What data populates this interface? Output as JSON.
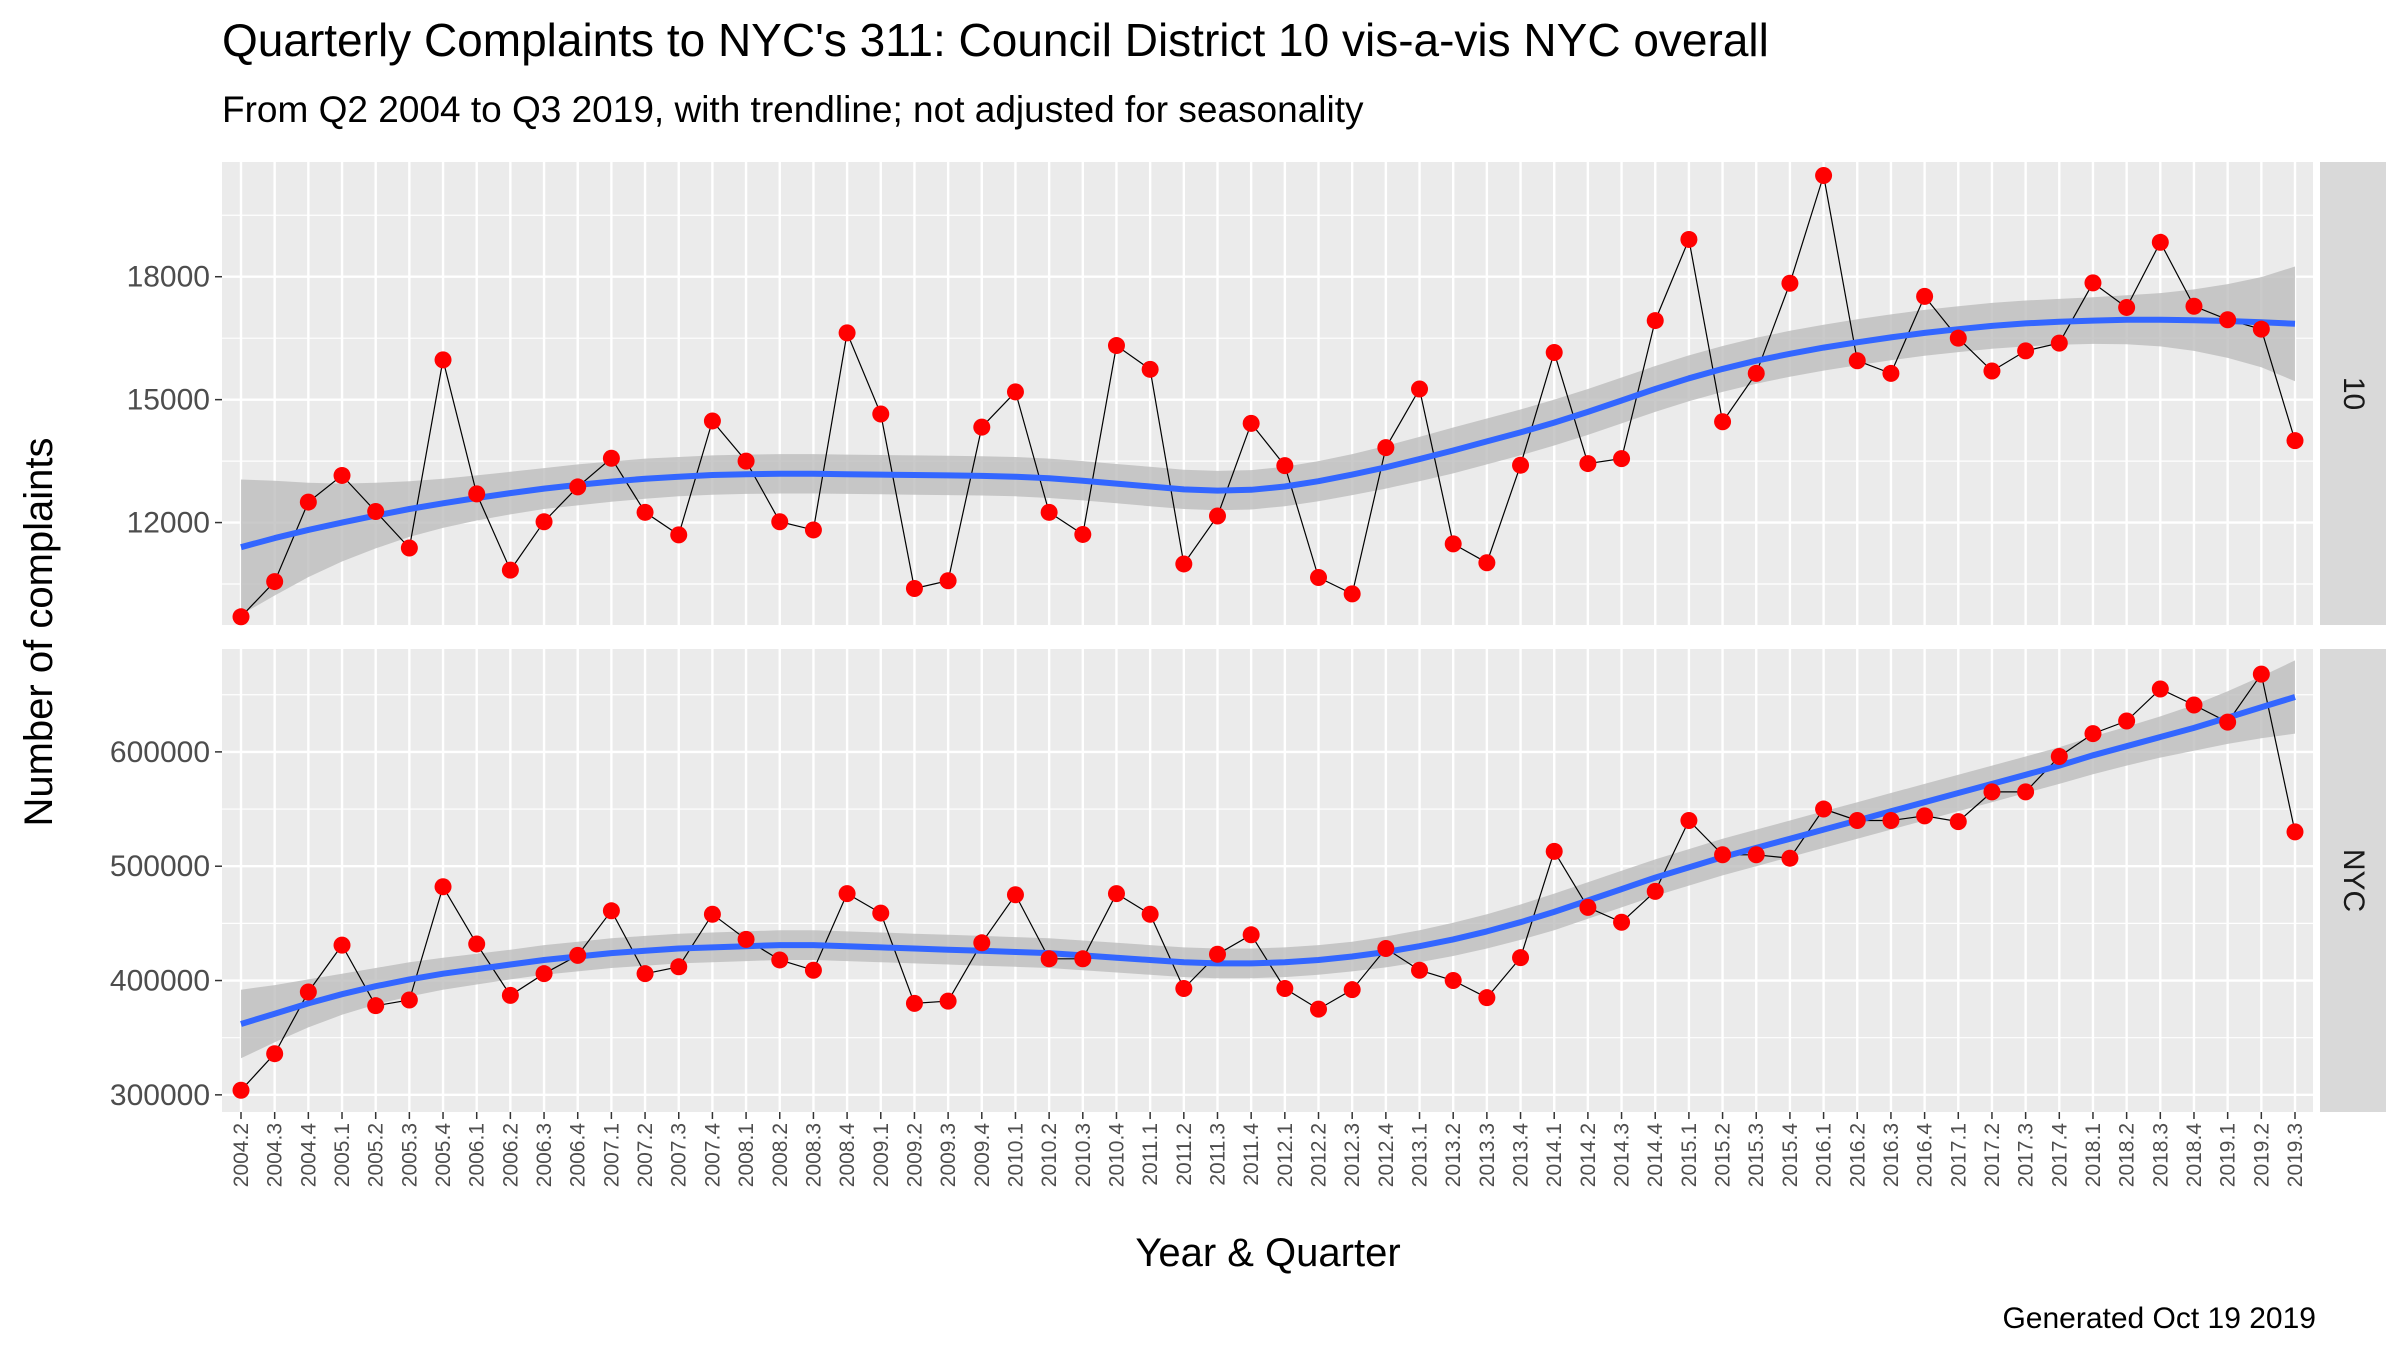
{
  "chart_data": {
    "type": "line",
    "title": "Quarterly Complaints to NYC's 311: Council District 10 vis-a-vis NYC overall",
    "subtitle": "From Q2 2004 to Q3 2019, with trendline; not adjusted for seasonality",
    "xlabel": "Year & Quarter",
    "ylabel": "Number of complaints",
    "caption": "Generated Oct 19 2019",
    "categories": [
      "2004.2",
      "2004.3",
      "2004.4",
      "2005.1",
      "2005.2",
      "2005.3",
      "2005.4",
      "2006.1",
      "2006.2",
      "2006.3",
      "2006.4",
      "2007.1",
      "2007.2",
      "2007.3",
      "2007.4",
      "2008.1",
      "2008.2",
      "2008.3",
      "2008.4",
      "2009.1",
      "2009.2",
      "2009.3",
      "2009.4",
      "2010.1",
      "2010.2",
      "2010.3",
      "2010.4",
      "2011.1",
      "2011.2",
      "2011.3",
      "2011.4",
      "2012.1",
      "2012.2",
      "2012.3",
      "2012.4",
      "2013.1",
      "2013.2",
      "2013.3",
      "2013.4",
      "2014.1",
      "2014.2",
      "2014.3",
      "2014.4",
      "2015.1",
      "2015.2",
      "2015.3",
      "2015.4",
      "2016.1",
      "2016.2",
      "2016.3",
      "2016.4",
      "2017.1",
      "2017.2",
      "2017.3",
      "2017.4",
      "2018.1",
      "2018.2",
      "2018.3",
      "2018.4",
      "2019.1",
      "2019.2",
      "2019.3"
    ],
    "grid": true,
    "trendline": "smooth with confidence band",
    "colors": {
      "panel_bg": "#ebebeb",
      "grid": "#ffffff",
      "strip_bg": "#d9d9d9",
      "points": "#ff0000",
      "line": "#000000",
      "trend": "#3366ff",
      "band": "#bdbdbd"
    },
    "panels": [
      {
        "strip_label": "10",
        "ylim": [
          9500,
          20800
        ],
        "yticks": [
          12000,
          15000,
          18000
        ],
        "yticklabels": [
          "12000",
          "15000",
          "18000"
        ],
        "values": [
          9700,
          10560,
          12500,
          13150,
          12270,
          11380,
          15970,
          12700,
          10840,
          12020,
          12870,
          13570,
          12250,
          11700,
          14480,
          13500,
          12020,
          11820,
          16630,
          14650,
          10390,
          10580,
          14330,
          15190,
          12250,
          11710,
          16320,
          15740,
          10990,
          12160,
          14420,
          13390,
          10660,
          10260,
          13830,
          15260,
          11480,
          11020,
          13400,
          16150,
          13440,
          13560,
          16930,
          18910,
          14460,
          15640,
          17840,
          20470,
          15950,
          15640,
          17520,
          16500,
          15700,
          16190,
          16380,
          17850,
          17250,
          18840,
          17280,
          16950,
          16720,
          14000
        ],
        "trend": [
          11400,
          11620,
          11820,
          12000,
          12170,
          12330,
          12470,
          12600,
          12720,
          12830,
          12920,
          13000,
          13070,
          13120,
          13160,
          13180,
          13190,
          13190,
          13180,
          13170,
          13160,
          13150,
          13140,
          13120,
          13080,
          13020,
          12950,
          12880,
          12810,
          12780,
          12800,
          12880,
          13010,
          13170,
          13350,
          13550,
          13760,
          13980,
          14200,
          14440,
          14700,
          14980,
          15260,
          15520,
          15750,
          15950,
          16120,
          16270,
          16400,
          16520,
          16630,
          16720,
          16800,
          16860,
          16900,
          16930,
          16950,
          16950,
          16940,
          16920,
          16890,
          16850
        ],
        "band_halfwidth": [
          1650,
          1400,
          1150,
          950,
          800,
          680,
          600,
          550,
          520,
          500,
          500,
          490,
          490,
          480,
          480,
          480,
          480,
          480,
          480,
          480,
          480,
          480,
          480,
          480,
          480,
          480,
          480,
          480,
          480,
          480,
          480,
          480,
          490,
          500,
          520,
          540,
          560,
          560,
          560,
          560,
          560,
          560,
          560,
          560,
          560,
          560,
          560,
          560,
          560,
          560,
          560,
          560,
          560,
          560,
          560,
          570,
          600,
          650,
          750,
          900,
          1100,
          1400
        ]
      },
      {
        "strip_label": "NYC",
        "ylim": [
          285000,
          690000
        ],
        "yticks": [
          300000,
          400000,
          500000,
          600000
        ],
        "yticklabels": [
          "300000",
          "400000",
          "500000",
          "600000"
        ],
        "values": [
          304000,
          336000,
          390000,
          431000,
          378000,
          383000,
          482000,
          432000,
          387000,
          406000,
          422000,
          461000,
          406000,
          412000,
          458000,
          436000,
          418000,
          409000,
          476000,
          459000,
          380000,
          382000,
          433000,
          475000,
          419000,
          419000,
          476000,
          458000,
          393000,
          423000,
          440000,
          393000,
          375000,
          392000,
          428000,
          409000,
          400000,
          385000,
          420000,
          513000,
          464000,
          451000,
          478000,
          540000,
          510000,
          510000,
          507000,
          550000,
          540000,
          540000,
          544000,
          539000,
          565000,
          565000,
          596000,
          616000,
          627000,
          655000,
          641000,
          626000,
          668000,
          530000
        ],
        "trend": [
          362000,
          371000,
          380000,
          388000,
          395000,
          401000,
          406000,
          410000,
          414000,
          418000,
          421000,
          424000,
          426000,
          428000,
          429000,
          430000,
          431000,
          431000,
          430000,
          429000,
          428000,
          427000,
          426000,
          425000,
          424000,
          422000,
          420000,
          418000,
          416000,
          415000,
          415000,
          416000,
          418000,
          421000,
          425000,
          430000,
          436000,
          443000,
          451000,
          460000,
          470000,
          480000,
          490000,
          499000,
          508000,
          516000,
          524000,
          532000,
          540000,
          548000,
          556000,
          564000,
          572000,
          580000,
          588000,
          597000,
          605000,
          613000,
          621000,
          630000,
          639000,
          648000
        ],
        "band_halfwidth": [
          30000,
          25000,
          21000,
          18000,
          16000,
          15000,
          14000,
          13500,
          13000,
          13000,
          13000,
          13000,
          13000,
          13000,
          13000,
          13000,
          13000,
          13000,
          13000,
          13000,
          13000,
          13000,
          13000,
          13000,
          13000,
          13000,
          13000,
          13000,
          13000,
          13000,
          13000,
          13000,
          13000,
          13000,
          13500,
          14000,
          14500,
          15000,
          15500,
          16000,
          16000,
          16000,
          16000,
          16000,
          16000,
          16000,
          16000,
          16000,
          16000,
          16000,
          16000,
          16000,
          16000,
          16000,
          16000,
          16500,
          17000,
          18000,
          20000,
          23000,
          27000,
          32000
        ]
      }
    ]
  }
}
